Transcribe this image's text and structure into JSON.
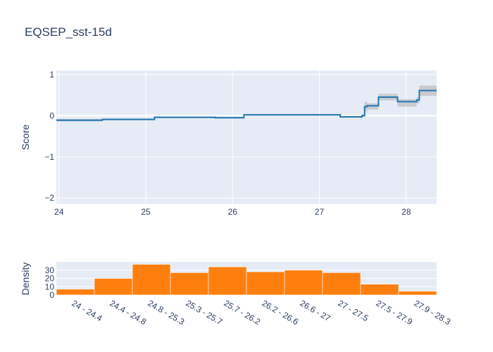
{
  "chart_data": [
    {
      "type": "line",
      "title": "EQSEP_sst-15d",
      "xlabel": "",
      "ylabel": "Score",
      "xlim": [
        23.97,
        28.35
      ],
      "ylim": [
        -2.15,
        1.1
      ],
      "x_ticks": [
        "24",
        "25",
        "26",
        "27",
        "28"
      ],
      "x_tick_values": [
        24,
        25,
        26,
        27,
        28
      ],
      "y_ticks": [
        "1",
        "0",
        "−1",
        "−2"
      ],
      "y_tick_values": [
        1,
        0,
        -1,
        -2
      ],
      "grid": true,
      "line_color": "#1f77b4",
      "band_color": "#bfbfbf",
      "plot_bg": "#e5ecf6",
      "steps": [
        {
          "x0": 23.97,
          "x1": 24.5,
          "y": -0.11,
          "lo": -0.14,
          "hi": -0.08
        },
        {
          "x0": 24.5,
          "x1": 25.1,
          "y": -0.09,
          "lo": -0.11,
          "hi": -0.07
        },
        {
          "x0": 25.1,
          "x1": 25.8,
          "y": -0.04,
          "lo": -0.06,
          "hi": -0.02
        },
        {
          "x0": 25.8,
          "x1": 26.13,
          "y": -0.05,
          "lo": -0.07,
          "hi": -0.03
        },
        {
          "x0": 26.13,
          "x1": 27.24,
          "y": 0.02,
          "lo": 0.0,
          "hi": 0.04
        },
        {
          "x0": 27.24,
          "x1": 27.49,
          "y": -0.03,
          "lo": -0.05,
          "hi": -0.01
        },
        {
          "x0": 27.49,
          "x1": 27.52,
          "y": 0.0,
          "lo": -0.03,
          "hi": 0.03
        },
        {
          "x0": 27.52,
          "x1": 27.55,
          "y": 0.22,
          "lo": 0.1,
          "hi": 0.34
        },
        {
          "x0": 27.55,
          "x1": 27.68,
          "y": 0.24,
          "lo": 0.15,
          "hi": 0.3
        },
        {
          "x0": 27.68,
          "x1": 27.9,
          "y": 0.45,
          "lo": 0.37,
          "hi": 0.53
        },
        {
          "x0": 27.9,
          "x1": 28.12,
          "y": 0.34,
          "lo": 0.22,
          "hi": 0.4
        },
        {
          "x0": 28.12,
          "x1": 28.15,
          "y": 0.38,
          "lo": 0.3,
          "hi": 0.45
        },
        {
          "x0": 28.15,
          "x1": 28.35,
          "y": 0.61,
          "lo": 0.48,
          "hi": 0.73
        }
      ]
    },
    {
      "type": "bar",
      "title": "",
      "xlabel": "",
      "ylabel": "Density",
      "ylim": [
        0,
        40
      ],
      "y_ticks": [
        "30",
        "20",
        "10",
        "0"
      ],
      "y_tick_values": [
        30,
        20,
        10,
        0
      ],
      "bar_color": "#ff7f0e",
      "plot_bg": "#e5ecf6",
      "categories": [
        "24 - 24.4",
        "24.4 - 24.8",
        "24.8 - 25.3",
        "25.3 - 25.7",
        "25.7 - 26.2",
        "26.2 - 26.6",
        "26.6 - 27",
        "27 - 27.5",
        "27.5 - 27.9",
        "27.9 - 28.3"
      ],
      "values": [
        7,
        20,
        37,
        27,
        34,
        28,
        30,
        27,
        13,
        4.5
      ]
    }
  ]
}
